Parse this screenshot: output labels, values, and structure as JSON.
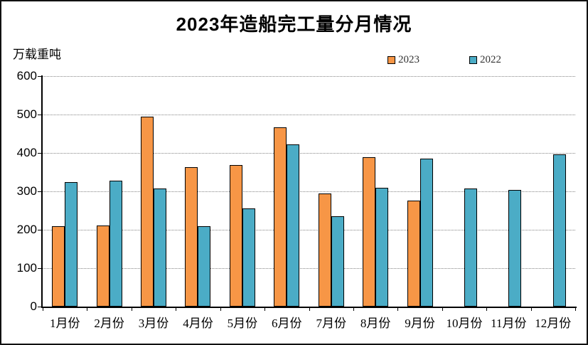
{
  "chart_data": {
    "type": "bar",
    "title": "2023年造船完工量分月情况",
    "ylabel": "万载重吨",
    "xlabel": "",
    "categories": [
      "1月份",
      "2月份",
      "3月份",
      "4月份",
      "5月份",
      "6月份",
      "7月份",
      "8月份",
      "9月份",
      "10月份",
      "11月份",
      "12月份"
    ],
    "series": [
      {
        "name": "2023",
        "color": "#F79646",
        "values": [
          210,
          212,
          495,
          363,
          368,
          466,
          295,
          389,
          276,
          null,
          null,
          null
        ]
      },
      {
        "name": "2022",
        "color": "#4BACC6",
        "values": [
          325,
          327,
          308,
          210,
          256,
          422,
          235,
          310,
          386,
          308,
          303,
          397
        ]
      }
    ],
    "ylim": [
      0,
      600
    ],
    "yticks": [
      600,
      500,
      400,
      300,
      200,
      100,
      0
    ],
    "grid": "horizontal-dotted",
    "legend_position": "top-right"
  },
  "colors": {
    "series_2023": "#F79646",
    "series_2022": "#4BACC6",
    "gridline": "#858585",
    "axis": "#000000",
    "background": "#FFFFFF"
  }
}
